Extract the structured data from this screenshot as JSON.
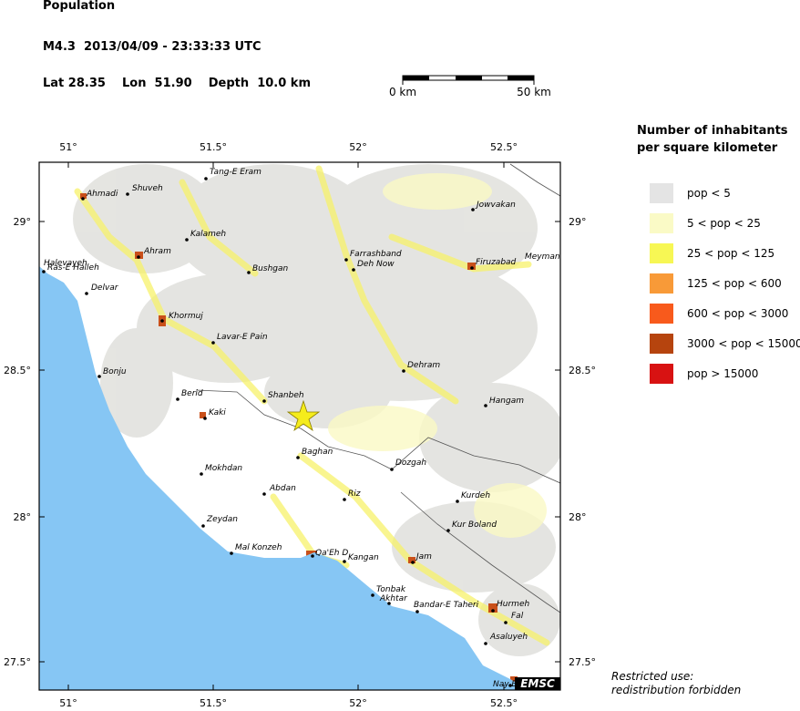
{
  "header": {
    "title": "Population",
    "event": "M4.3  2013/04/09 - 23:33:33 UTC",
    "location": "Lat 28.35    Lon  51.90    Depth  10.0 km"
  },
  "scale_bar": {
    "start": "0 km",
    "end": "50 km"
  },
  "map": {
    "lon_labels": [
      "51°",
      "51.5°",
      "52°",
      "52.5°"
    ],
    "lat_labels": [
      "29°",
      "28.5°",
      "28°",
      "27.5°"
    ],
    "places": [
      "Tang-E Eram",
      "Ahmadi",
      "Shuveh",
      "Jowvakan",
      "Kalameh",
      "Ahram",
      "Farrashband",
      "Deh Now",
      "Firuzabad",
      "Meyman",
      "Halevayeh",
      "Ras-E Halleh",
      "Bushgan",
      "Delvar",
      "Khormuj",
      "Lavar-E Pain",
      "Bonju",
      "Dehram",
      "Berid",
      "Shanbeh",
      "Hangam",
      "Kaki",
      "Baghan",
      "Dozgah",
      "Mokhdan",
      "Abdan",
      "Riz",
      "Kurdeh",
      "Zeydan",
      "Kur Boland",
      "Mal Konzeh",
      "Qa'Eh D",
      "Kangan",
      "Jam",
      "Tonbak",
      "Akhtar",
      "Bandar-E Taheri",
      "Hurmeh",
      "Fal",
      "Asaluyeh",
      "Nay B"
    ],
    "logo": "EMSC"
  },
  "legend": {
    "title": [
      "Number of inhabitants",
      "per square kilometer"
    ],
    "items": [
      {
        "label": "pop < 5",
        "color": "#e4e4e4"
      },
      {
        "label": "5 < pop < 25",
        "color": "#fafac6"
      },
      {
        "label": "25 < pop < 125",
        "color": "#f7f754"
      },
      {
        "label": "125 < pop < 600",
        "color": "#f89a38"
      },
      {
        "label": "600 < pop < 3000",
        "color": "#f85a1c"
      },
      {
        "label": "3000 < pop < 15000",
        "color": "#b6440e"
      },
      {
        "label": "pop > 15000",
        "color": "#d81212"
      }
    ]
  },
  "footer": [
    "Restricted use:",
    "redistribution forbidden"
  ]
}
